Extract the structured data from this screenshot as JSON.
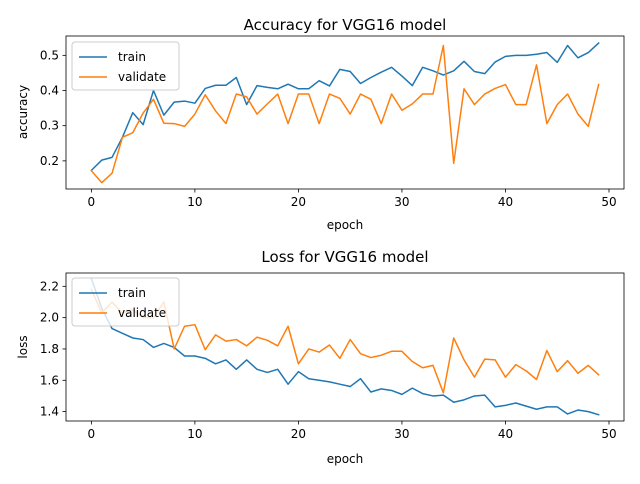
{
  "colors": {
    "train": "#1f77b4",
    "validate": "#ff7f0e"
  },
  "chart_data": [
    {
      "type": "line",
      "title": "Accuracy for VGG16 model",
      "xlabel": "epoch",
      "ylabel": "accuracy",
      "xlim": [
        -2.45,
        51.45
      ],
      "ylim": [
        0.12,
        0.555
      ],
      "xticks": [
        0,
        10,
        20,
        30,
        40,
        50
      ],
      "xtick_labels": [
        "0",
        "10",
        "20",
        "30",
        "40",
        "50"
      ],
      "yticks": [
        0.2,
        0.3,
        0.4,
        0.5
      ],
      "ytick_labels": [
        "0.2",
        "0.3",
        "0.4",
        "0.5"
      ],
      "legend": "top-left",
      "grid": false,
      "x": [
        0,
        1,
        2,
        3,
        4,
        5,
        6,
        7,
        8,
        9,
        10,
        11,
        12,
        13,
        14,
        15,
        16,
        17,
        18,
        19,
        20,
        21,
        22,
        23,
        24,
        25,
        26,
        27,
        28,
        29,
        30,
        31,
        32,
        33,
        34,
        35,
        36,
        37,
        38,
        39,
        40,
        41,
        42,
        43,
        44,
        45,
        46,
        47,
        48,
        49
      ],
      "series": [
        {
          "name": "train",
          "color": "#1f77b4",
          "values": [
            0.173,
            0.202,
            0.21,
            0.267,
            0.337,
            0.303,
            0.4,
            0.33,
            0.367,
            0.37,
            0.364,
            0.406,
            0.415,
            0.415,
            0.437,
            0.36,
            0.414,
            0.409,
            0.405,
            0.418,
            0.405,
            0.405,
            0.428,
            0.413,
            0.46,
            0.454,
            0.42,
            0.437,
            0.452,
            0.466,
            0.441,
            0.414,
            0.466,
            0.456,
            0.444,
            0.456,
            0.483,
            0.454,
            0.448,
            0.481,
            0.497,
            0.5,
            0.5,
            0.503,
            0.508,
            0.48,
            0.528,
            0.493,
            0.508,
            0.535
          ]
        },
        {
          "name": "validate",
          "color": "#ff7f0e",
          "values": [
            0.172,
            0.138,
            0.165,
            0.267,
            0.28,
            0.336,
            0.375,
            0.307,
            0.306,
            0.298,
            0.333,
            0.388,
            0.342,
            0.306,
            0.39,
            0.382,
            0.333,
            0.362,
            0.39,
            0.306,
            0.39,
            0.39,
            0.306,
            0.39,
            0.378,
            0.333,
            0.39,
            0.375,
            0.306,
            0.39,
            0.344,
            0.362,
            0.39,
            0.39,
            0.528,
            0.193,
            0.405,
            0.36,
            0.39,
            0.406,
            0.417,
            0.36,
            0.36,
            0.473,
            0.306,
            0.36,
            0.39,
            0.333,
            0.298,
            0.417
          ]
        }
      ]
    },
    {
      "type": "line",
      "title": "Loss for VGG16 model",
      "xlabel": "epoch",
      "ylabel": "loss",
      "xlim": [
        -2.45,
        51.45
      ],
      "ylim": [
        1.34,
        2.285
      ],
      "xticks": [
        0,
        10,
        20,
        30,
        40,
        50
      ],
      "xtick_labels": [
        "0",
        "10",
        "20",
        "30",
        "40",
        "50"
      ],
      "yticks": [
        1.4,
        1.6,
        1.8,
        2.0,
        2.2
      ],
      "ytick_labels": [
        "1.4",
        "1.6",
        "1.8",
        "2.0",
        "2.2"
      ],
      "legend": "top-left",
      "grid": false,
      "x": [
        0,
        1,
        2,
        3,
        4,
        5,
        6,
        7,
        8,
        9,
        10,
        11,
        12,
        13,
        14,
        15,
        16,
        17,
        18,
        19,
        20,
        21,
        22,
        23,
        24,
        25,
        26,
        27,
        28,
        29,
        30,
        31,
        32,
        33,
        34,
        35,
        36,
        37,
        38,
        39,
        40,
        41,
        42,
        43,
        44,
        45,
        46,
        47,
        48,
        49
      ],
      "series": [
        {
          "name": "train",
          "color": "#1f77b4",
          "values": [
            2.25,
            2.06,
            1.93,
            1.9,
            1.87,
            1.86,
            1.81,
            1.835,
            1.81,
            1.755,
            1.755,
            1.74,
            1.705,
            1.73,
            1.67,
            1.73,
            1.67,
            1.65,
            1.67,
            1.575,
            1.655,
            1.61,
            1.6,
            1.59,
            1.575,
            1.56,
            1.61,
            1.525,
            1.545,
            1.535,
            1.51,
            1.55,
            1.515,
            1.5,
            1.505,
            1.46,
            1.475,
            1.5,
            1.505,
            1.43,
            1.44,
            1.455,
            1.435,
            1.415,
            1.43,
            1.43,
            1.385,
            1.41,
            1.4,
            1.38
          ]
        },
        {
          "name": "validate",
          "color": "#ff7f0e",
          "values": [
            2.18,
            2.03,
            2.1,
            2.03,
            2.05,
            2.0,
            2.0,
            2.1,
            1.8,
            1.945,
            1.955,
            1.795,
            1.89,
            1.85,
            1.86,
            1.82,
            1.875,
            1.855,
            1.82,
            1.945,
            1.705,
            1.8,
            1.78,
            1.825,
            1.74,
            1.86,
            1.77,
            1.745,
            1.76,
            1.785,
            1.785,
            1.72,
            1.68,
            1.695,
            1.52,
            1.87,
            1.73,
            1.62,
            1.735,
            1.73,
            1.62,
            1.7,
            1.66,
            1.605,
            1.79,
            1.655,
            1.725,
            1.645,
            1.695,
            1.635
          ]
        }
      ]
    }
  ]
}
